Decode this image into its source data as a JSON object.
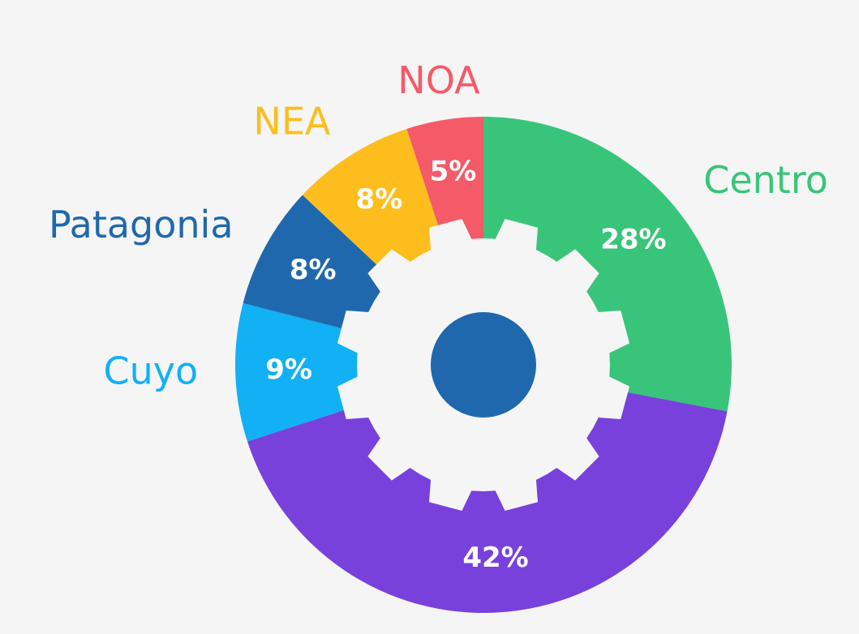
{
  "chart_data": {
    "type": "pie",
    "categories": [
      "Centro",
      null,
      "Cuyo",
      "Patagonia",
      "NEA",
      "NOA"
    ],
    "values": [
      28,
      42,
      9,
      8,
      8,
      5
    ],
    "value_labels": [
      "28%",
      "42%",
      "9%",
      "8%",
      "8%",
      "5%"
    ],
    "colors": [
      "#38c57a",
      "#7841dc",
      "#12b0f5",
      "#1f68ad",
      "#fdbe1d",
      "#f45a68"
    ]
  }
}
